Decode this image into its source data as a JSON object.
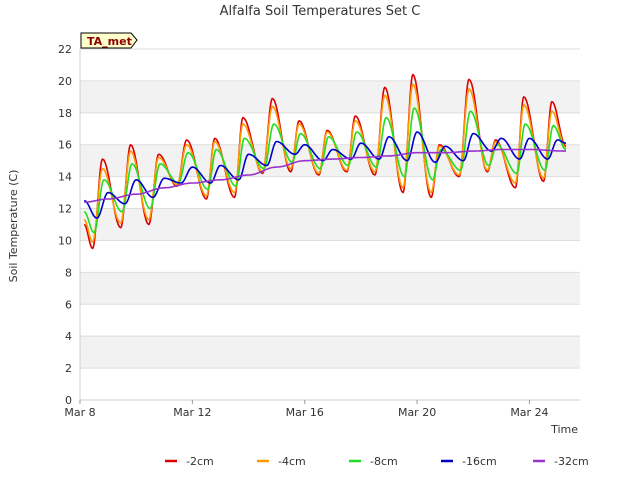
{
  "chart_data": {
    "type": "line",
    "title": "Alfalfa Soil Temperatures Set C",
    "site_label": "TA_met",
    "xlabel": "Time",
    "ylabel": "Soil Temperature (C)",
    "xlim": [
      8,
      25.8
    ],
    "ylim": [
      0,
      22
    ],
    "y_ticks": [
      0,
      2,
      4,
      6,
      8,
      10,
      12,
      14,
      16,
      18,
      20,
      22
    ],
    "x_ticks": [
      {
        "value": 8,
        "label": "Mar 8"
      },
      {
        "value": 12,
        "label": "Mar 12"
      },
      {
        "value": 16,
        "label": "Mar 16"
      },
      {
        "value": 20,
        "label": "Mar 20"
      },
      {
        "value": 24,
        "label": "Mar 24"
      }
    ],
    "grid": "horizontal bands",
    "legend_position": "bottom",
    "x_unit": "day of March",
    "series": [
      {
        "name": "-2cm",
        "color": "#dd0000",
        "points": [
          [
            8.15,
            11.0
          ],
          [
            8.45,
            9.5
          ],
          [
            8.8,
            15.1
          ],
          [
            9.45,
            10.8
          ],
          [
            9.8,
            16.0
          ],
          [
            10.45,
            11.0
          ],
          [
            10.8,
            15.4
          ],
          [
            11.45,
            13.4
          ],
          [
            11.8,
            16.3
          ],
          [
            12.5,
            12.6
          ],
          [
            12.8,
            16.4
          ],
          [
            13.5,
            12.7
          ],
          [
            13.8,
            17.7
          ],
          [
            14.5,
            14.2
          ],
          [
            14.85,
            18.9
          ],
          [
            15.5,
            14.3
          ],
          [
            15.8,
            17.5
          ],
          [
            16.5,
            14.1
          ],
          [
            16.8,
            16.9
          ],
          [
            17.5,
            14.3
          ],
          [
            17.8,
            17.8
          ],
          [
            18.5,
            14.1
          ],
          [
            18.85,
            19.6
          ],
          [
            19.5,
            13.0
          ],
          [
            19.85,
            20.4
          ],
          [
            20.5,
            12.7
          ],
          [
            20.8,
            16.0
          ],
          [
            21.5,
            14.0
          ],
          [
            21.85,
            20.1
          ],
          [
            22.5,
            14.3
          ],
          [
            22.8,
            16.3
          ],
          [
            23.5,
            13.3
          ],
          [
            23.8,
            19.0
          ],
          [
            24.5,
            13.7
          ],
          [
            24.8,
            18.7
          ],
          [
            25.3,
            15.9
          ]
        ]
      },
      {
        "name": "-4cm",
        "color": "#ff9900",
        "points": [
          [
            8.15,
            11.3
          ],
          [
            8.45,
            9.9
          ],
          [
            8.8,
            14.5
          ],
          [
            9.45,
            11.1
          ],
          [
            9.8,
            15.6
          ],
          [
            10.45,
            11.3
          ],
          [
            10.8,
            15.2
          ],
          [
            11.45,
            13.5
          ],
          [
            11.8,
            16.0
          ],
          [
            12.5,
            12.8
          ],
          [
            12.8,
            16.2
          ],
          [
            13.5,
            13.0
          ],
          [
            13.8,
            17.3
          ],
          [
            14.5,
            14.3
          ],
          [
            14.85,
            18.4
          ],
          [
            15.5,
            14.5
          ],
          [
            15.8,
            17.3
          ],
          [
            16.5,
            14.2
          ],
          [
            16.8,
            16.8
          ],
          [
            17.5,
            14.4
          ],
          [
            17.8,
            17.5
          ],
          [
            18.5,
            14.3
          ],
          [
            18.85,
            19.1
          ],
          [
            19.5,
            13.3
          ],
          [
            19.85,
            19.8
          ],
          [
            20.5,
            13.0
          ],
          [
            20.8,
            15.9
          ],
          [
            21.5,
            14.1
          ],
          [
            21.85,
            19.5
          ],
          [
            22.5,
            14.4
          ],
          [
            22.8,
            16.2
          ],
          [
            23.5,
            13.6
          ],
          [
            23.8,
            18.5
          ],
          [
            24.5,
            13.9
          ],
          [
            24.8,
            18.1
          ],
          [
            25.3,
            15.8
          ]
        ]
      },
      {
        "name": "-8cm",
        "color": "#22dd22",
        "points": [
          [
            8.15,
            11.8
          ],
          [
            8.5,
            10.5
          ],
          [
            8.85,
            13.8
          ],
          [
            9.5,
            11.8
          ],
          [
            9.85,
            14.8
          ],
          [
            10.5,
            12.0
          ],
          [
            10.85,
            14.8
          ],
          [
            11.5,
            13.6
          ],
          [
            11.85,
            15.5
          ],
          [
            12.55,
            13.2
          ],
          [
            12.85,
            15.7
          ],
          [
            13.55,
            13.4
          ],
          [
            13.85,
            16.4
          ],
          [
            14.55,
            14.5
          ],
          [
            14.9,
            17.3
          ],
          [
            15.55,
            14.9
          ],
          [
            15.85,
            16.7
          ],
          [
            16.55,
            14.5
          ],
          [
            16.85,
            16.5
          ],
          [
            17.55,
            14.7
          ],
          [
            17.85,
            16.8
          ],
          [
            18.55,
            14.6
          ],
          [
            18.9,
            17.7
          ],
          [
            19.55,
            14.0
          ],
          [
            19.9,
            18.3
          ],
          [
            20.55,
            13.8
          ],
          [
            20.85,
            15.7
          ],
          [
            21.55,
            14.4
          ],
          [
            21.9,
            18.1
          ],
          [
            22.55,
            14.7
          ],
          [
            22.85,
            16.0
          ],
          [
            23.55,
            14.2
          ],
          [
            23.85,
            17.3
          ],
          [
            24.55,
            14.4
          ],
          [
            24.85,
            17.2
          ],
          [
            25.3,
            15.7
          ]
        ]
      },
      {
        "name": "-16cm",
        "color": "#0000cc",
        "points": [
          [
            8.15,
            12.5
          ],
          [
            8.6,
            11.4
          ],
          [
            9.0,
            13.0
          ],
          [
            9.6,
            12.3
          ],
          [
            10.0,
            13.8
          ],
          [
            10.6,
            12.7
          ],
          [
            11.0,
            13.9
          ],
          [
            11.6,
            13.6
          ],
          [
            12.0,
            14.6
          ],
          [
            12.65,
            13.6
          ],
          [
            13.0,
            14.7
          ],
          [
            13.65,
            13.8
          ],
          [
            14.0,
            15.4
          ],
          [
            14.65,
            14.7
          ],
          [
            15.0,
            16.2
          ],
          [
            15.65,
            15.4
          ],
          [
            16.0,
            16.0
          ],
          [
            16.65,
            15.0
          ],
          [
            17.0,
            15.7
          ],
          [
            17.65,
            15.1
          ],
          [
            18.0,
            16.1
          ],
          [
            18.65,
            15.1
          ],
          [
            19.0,
            16.5
          ],
          [
            19.65,
            15.0
          ],
          [
            20.0,
            16.8
          ],
          [
            20.65,
            14.9
          ],
          [
            21.0,
            15.9
          ],
          [
            21.65,
            15.0
          ],
          [
            22.0,
            16.7
          ],
          [
            22.65,
            15.6
          ],
          [
            23.0,
            16.4
          ],
          [
            23.65,
            15.1
          ],
          [
            24.0,
            16.4
          ],
          [
            24.65,
            15.1
          ],
          [
            25.0,
            16.3
          ],
          [
            25.3,
            16.1
          ]
        ]
      },
      {
        "name": "-32cm",
        "color": "#9933cc",
        "points": [
          [
            8.15,
            12.4
          ],
          [
            9.0,
            12.6
          ],
          [
            10.0,
            12.9
          ],
          [
            11.0,
            13.3
          ],
          [
            12.0,
            13.6
          ],
          [
            13.0,
            13.8
          ],
          [
            14.0,
            14.1
          ],
          [
            15.0,
            14.6
          ],
          [
            16.0,
            15.0
          ],
          [
            17.0,
            15.1
          ],
          [
            18.0,
            15.2
          ],
          [
            19.0,
            15.3
          ],
          [
            20.0,
            15.5
          ],
          [
            21.0,
            15.5
          ],
          [
            22.0,
            15.6
          ],
          [
            23.0,
            15.7
          ],
          [
            24.0,
            15.7
          ],
          [
            25.3,
            15.6
          ]
        ]
      }
    ]
  }
}
